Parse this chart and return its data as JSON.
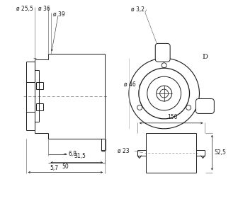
{
  "bg_color": "#ffffff",
  "line_color": "#1a1a1a",
  "annotations": {
    "d25_5": "ø 25,5",
    "d36": "ø 36",
    "d39": "ø 39",
    "d3_2": "ø 3,2",
    "d46": "ø 46",
    "d23": "ø 23",
    "d_label": "D",
    "dim_68": "6,8",
    "dim_315": "31,5",
    "dim_57": "5,7",
    "dim_50": "50",
    "dim_150": "150",
    "dim_525": "52,5"
  }
}
